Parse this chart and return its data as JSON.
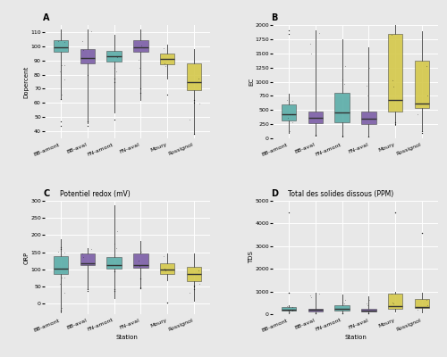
{
  "stations": [
    "BB-amont",
    "BB-aval",
    "FN-amont",
    "FN-aval",
    "Moury",
    "Rossignol"
  ],
  "colors": [
    "#5AADA8",
    "#7B5EA7",
    "#5AADA8",
    "#7B5EA7",
    "#D4C84A",
    "#D4C84A"
  ],
  "panel_labels": [
    "A",
    "B",
    "C",
    "D"
  ],
  "panel_titles": {
    "A": "",
    "B": "",
    "C": "Potentiel redox (mV)",
    "D": "Total des solides dissous (PPM)"
  },
  "ylabel_A": "Dopercent",
  "ylabel_B": "EC",
  "ylabel_C": "ORP",
  "ylabel_D": "TDS",
  "xlabel": "Station",
  "bg_color": "#E8E8E8",
  "box_data": {
    "A": {
      "BB-amont": {
        "q1": 96,
        "med": 99,
        "q3": 104,
        "whislo": 63,
        "whishi": 112,
        "fliers": [
          44,
          47,
          63
        ]
      },
      "BB-aval": {
        "q1": 88,
        "med": 92,
        "q3": 98,
        "whislo": 46,
        "whishi": 112,
        "fliers": [
          44,
          47,
          80
        ]
      },
      "FN-amont": {
        "q1": 89,
        "med": 93,
        "q3": 97,
        "whislo": 53,
        "whishi": 108,
        "fliers": [
          48,
          75,
          77
        ]
      },
      "FN-aval": {
        "q1": 96,
        "med": 99,
        "q3": 104,
        "whislo": 62,
        "whishi": 112,
        "fliers": [
          67,
          70
        ]
      },
      "Moury": {
        "q1": 87,
        "med": 91,
        "q3": 95,
        "whislo": 77,
        "whishi": 101,
        "fliers": [
          66
        ]
      },
      "Rossignol": {
        "q1": 69,
        "med": 75,
        "q3": 88,
        "whislo": 38,
        "whishi": 98,
        "fliers": [
          38,
          60,
          62
        ]
      }
    },
    "B": {
      "BB-amont": {
        "q1": 320,
        "med": 430,
        "q3": 600,
        "whislo": 90,
        "whishi": 790,
        "fliers": [
          1900,
          1850
        ]
      },
      "BB-aval": {
        "q1": 270,
        "med": 360,
        "q3": 480,
        "whislo": 70,
        "whishi": 1900,
        "fliers": [
          50,
          60
        ]
      },
      "FN-amont": {
        "q1": 280,
        "med": 450,
        "q3": 800,
        "whislo": 55,
        "whishi": 1750,
        "fliers": [
          40,
          55
        ]
      },
      "FN-aval": {
        "q1": 260,
        "med": 355,
        "q3": 480,
        "whislo": 55,
        "whishi": 1600,
        "fliers": [
          30,
          40
        ]
      },
      "Moury": {
        "q1": 480,
        "med": 680,
        "q3": 1840,
        "whislo": 240,
        "whishi": 2000,
        "fliers": [
          260,
          290
        ]
      },
      "Rossignol": {
        "q1": 530,
        "med": 620,
        "q3": 1370,
        "whislo": 120,
        "whishi": 1890,
        "fliers": [
          100,
          130
        ]
      }
    },
    "C": {
      "BB-amont": {
        "q1": 88,
        "med": 102,
        "q3": 140,
        "whislo": -25,
        "whishi": 188,
        "fliers": [
          -20,
          160,
          165
        ]
      },
      "BB-aval": {
        "q1": 113,
        "med": 119,
        "q3": 147,
        "whislo": 43,
        "whishi": 163,
        "fliers": [
          38,
          42
        ]
      },
      "FN-amont": {
        "q1": 103,
        "med": 113,
        "q3": 136,
        "whislo": 18,
        "whishi": 288,
        "fliers": [
          38,
          42,
          95
        ]
      },
      "FN-aval": {
        "q1": 106,
        "med": 113,
        "q3": 146,
        "whislo": 48,
        "whishi": 183,
        "fliers": [
          46,
          48,
          73
        ]
      },
      "Moury": {
        "q1": 88,
        "med": 101,
        "q3": 118,
        "whislo": 68,
        "whishi": 146,
        "fliers": [
          3,
          5
        ]
      },
      "Rossignol": {
        "q1": 66,
        "med": 86,
        "q3": 108,
        "whislo": 8,
        "whishi": 146,
        "fliers": [
          43,
          50,
          52
        ]
      }
    },
    "D": {
      "BB-amont": {
        "q1": 155,
        "med": 215,
        "q3": 305,
        "whislo": 45,
        "whishi": 395,
        "fliers": [
          940,
          960,
          4500
        ]
      },
      "BB-aval": {
        "q1": 135,
        "med": 180,
        "q3": 240,
        "whislo": 35,
        "whishi": 940,
        "fliers": [
          30,
          35
        ]
      },
      "FN-amont": {
        "q1": 140,
        "med": 225,
        "q3": 395,
        "whislo": 25,
        "whishi": 865,
        "fliers": [
          20,
          25
        ]
      },
      "FN-aval": {
        "q1": 130,
        "med": 175,
        "q3": 240,
        "whislo": 25,
        "whishi": 795,
        "fliers": [
          20,
          25
        ]
      },
      "Moury": {
        "q1": 240,
        "med": 340,
        "q3": 915,
        "whislo": 120,
        "whishi": 995,
        "fliers": [
          4490,
          4500
        ]
      },
      "Rossignol": {
        "q1": 265,
        "med": 310,
        "q3": 685,
        "whislo": 60,
        "whishi": 945,
        "fliers": [
          3580,
          3600
        ]
      }
    }
  },
  "ylim_A": [
    35,
    115
  ],
  "ylim_B": [
    0,
    2000
  ],
  "ylim_C": [
    -30,
    300
  ],
  "ylim_D": [
    0,
    5000
  ]
}
